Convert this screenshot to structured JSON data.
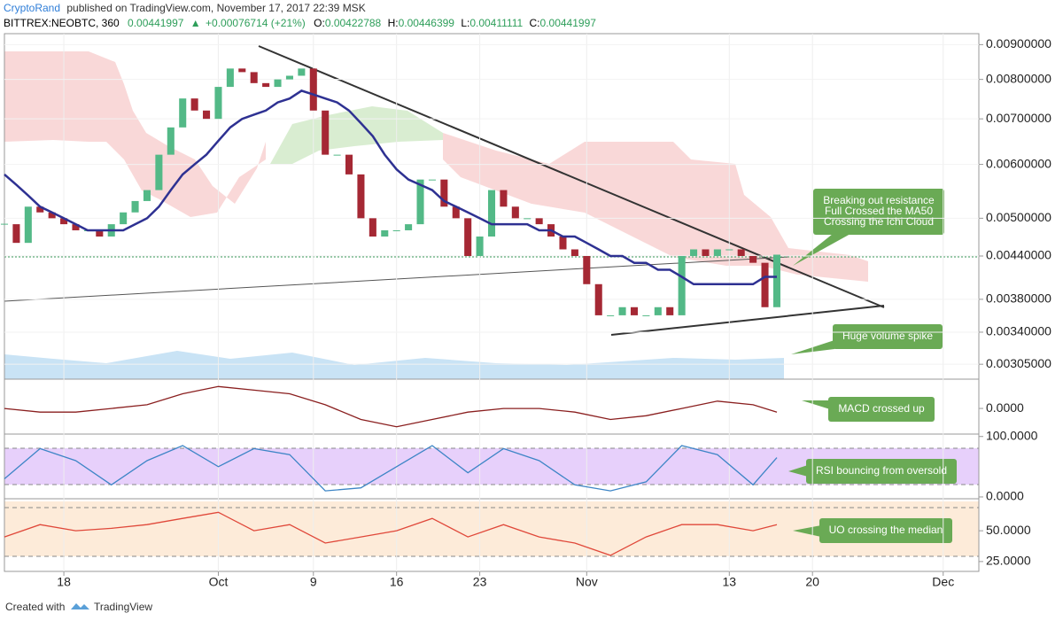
{
  "header": {
    "author": "CryptoRand",
    "published": "published on TradingView.com, November 17, 2017 22:39 MSK",
    "symbol": "BITTREX:NEOBTC, 360",
    "last": "0.00441997",
    "arrow": "▲",
    "change": "+0.00076714 (+21%)",
    "ohlc": [
      {
        "label": "O:",
        "value": "0.00422788"
      },
      {
        "label": "H:",
        "value": "0.00446399"
      },
      {
        "label": "L:",
        "value": "0.00411111"
      },
      {
        "label": "C:",
        "value": "0.00441997"
      }
    ]
  },
  "annotations": [
    {
      "lines": [
        "Breaking out resistance",
        "Full Crossed the MA50",
        "Crossing the Ichi Cloud"
      ]
    },
    {
      "lines": [
        "Huge volume spike"
      ]
    },
    {
      "lines": [
        "MACD crossed up"
      ]
    },
    {
      "lines": [
        "RSI bouncing from oversold"
      ]
    },
    {
      "lines": [
        "UO crossing the median"
      ]
    }
  ],
  "footer": {
    "created": "Created with",
    "brand": "TradingView"
  },
  "chart_data": [
    {
      "type": "candlestick",
      "log_scale": true,
      "grid": true,
      "up_color": "#53b987",
      "down_color": "#a52834",
      "xlim": [
        "2017-09-13",
        "2017-12-04"
      ],
      "xticks": [
        {
          "value": "2017-09-18",
          "label": "18"
        },
        {
          "value": "2017-10-01",
          "label": "Oct"
        },
        {
          "value": "2017-10-09",
          "label": "9"
        },
        {
          "value": "2017-10-16",
          "label": "16"
        },
        {
          "value": "2017-10-23",
          "label": "23"
        },
        {
          "value": "2017-11-01",
          "label": "Nov"
        },
        {
          "value": "2017-11-13",
          "label": "13"
        },
        {
          "value": "2017-11-20",
          "label": "20"
        },
        {
          "value": "2017-12-01",
          "label": "Dec"
        }
      ],
      "ylim": [
        0.0029,
        0.00934
      ],
      "yticks": [
        {
          "value": 0.009,
          "label": "0.00900000"
        },
        {
          "value": 0.008,
          "label": "0.00800000"
        },
        {
          "value": 0.007,
          "label": "0.00700000"
        },
        {
          "value": 0.006,
          "label": "0.00600000"
        },
        {
          "value": 0.005,
          "label": "0.00500000"
        },
        {
          "value": 0.0044,
          "label": "0.00440000"
        },
        {
          "value": 0.0038,
          "label": "0.00380000"
        },
        {
          "value": 0.0034,
          "label": "0.00340000"
        },
        {
          "value": 0.00305,
          "label": "0.00305000"
        }
      ],
      "x": [
        "2017-09-13",
        "2017-09-14",
        "2017-09-15",
        "2017-09-16",
        "2017-09-17",
        "2017-09-18",
        "2017-09-19",
        "2017-09-20",
        "2017-09-21",
        "2017-09-22",
        "2017-09-23",
        "2017-09-24",
        "2017-09-25",
        "2017-09-26",
        "2017-09-27",
        "2017-09-28",
        "2017-09-29",
        "2017-09-30",
        "2017-10-01",
        "2017-10-02",
        "2017-10-03",
        "2017-10-04",
        "2017-10-05",
        "2017-10-06",
        "2017-10-07",
        "2017-10-08",
        "2017-10-09",
        "2017-10-10",
        "2017-10-11",
        "2017-10-12",
        "2017-10-13",
        "2017-10-14",
        "2017-10-15",
        "2017-10-16",
        "2017-10-17",
        "2017-10-18",
        "2017-10-19",
        "2017-10-20",
        "2017-10-21",
        "2017-10-22",
        "2017-10-23",
        "2017-10-24",
        "2017-10-25",
        "2017-10-26",
        "2017-10-27",
        "2017-10-28",
        "2017-10-29",
        "2017-10-30",
        "2017-10-31",
        "2017-11-01",
        "2017-11-02",
        "2017-11-03",
        "2017-11-04",
        "2017-11-05",
        "2017-11-06",
        "2017-11-07",
        "2017-11-08",
        "2017-11-09",
        "2017-11-10",
        "2017-11-11",
        "2017-11-12",
        "2017-11-13",
        "2017-11-14",
        "2017-11-15",
        "2017-11-16",
        "2017-11-17"
      ],
      "series": [
        {
          "type": "candlestick",
          "values": [
            0.0049,
            0.0046,
            0.0052,
            0.0051,
            0.005,
            0.0049,
            0.0048,
            0.0048,
            0.0047,
            0.0049,
            0.0051,
            0.0053,
            0.0055,
            0.0062,
            0.0068,
            0.0075,
            0.0072,
            0.007,
            0.0078,
            0.0083,
            0.0082,
            0.0079,
            0.0078,
            0.008,
            0.0081,
            0.0083,
            0.0072,
            0.0062,
            0.0062,
            0.0058,
            0.005,
            0.0047,
            0.0048,
            0.0048,
            0.0049,
            0.0057,
            0.0057,
            0.0052,
            0.005,
            0.0044,
            0.0047,
            0.0055,
            0.0052,
            0.005,
            0.005,
            0.0049,
            0.0047,
            0.0045,
            0.0044,
            0.004,
            0.0036,
            0.0036,
            0.0037,
            0.0036,
            0.0036,
            0.0037,
            0.0036,
            0.0044,
            0.0045,
            0.0044,
            0.0045,
            0.0045,
            0.0044,
            0.0043,
            0.0037,
            0.00442
          ]
        },
        {
          "type": "line",
          "color": "#2e3192",
          "values": [
            0.0058,
            0.0056,
            0.0054,
            0.0052,
            0.0051,
            0.005,
            0.0049,
            0.0048,
            0.0048,
            0.0048,
            0.0048,
            0.0049,
            0.005,
            0.0052,
            0.0055,
            0.0058,
            0.006,
            0.0062,
            0.0065,
            0.0068,
            0.007,
            0.0071,
            0.0072,
            0.0074,
            0.0075,
            0.0077,
            0.0076,
            0.0075,
            0.0074,
            0.0072,
            0.0069,
            0.0066,
            0.0062,
            0.0059,
            0.0057,
            0.0056,
            0.0055,
            0.0053,
            0.0052,
            0.0051,
            0.005,
            0.0049,
            0.0049,
            0.0049,
            0.0049,
            0.0048,
            0.0048,
            0.0047,
            0.0047,
            0.0046,
            0.0045,
            0.0044,
            0.0044,
            0.0043,
            0.0043,
            0.0042,
            0.0042,
            0.0041,
            0.004,
            0.004,
            0.004,
            0.004,
            0.004,
            0.004,
            0.0041,
            0.0041
          ]
        }
      ]
    },
    {
      "type": "line",
      "grid": false,
      "ylim": [
        -0.0007,
        0.0008
      ],
      "yticks": [
        {
          "value": 0,
          "label": "0.0000"
        }
      ],
      "x": [
        "2017-09-13",
        "2017-09-16",
        "2017-09-19",
        "2017-09-22",
        "2017-09-25",
        "2017-09-28",
        "2017-10-01",
        "2017-10-04",
        "2017-10-07",
        "2017-10-10",
        "2017-10-13",
        "2017-10-16",
        "2017-10-19",
        "2017-10-22",
        "2017-10-25",
        "2017-10-28",
        "2017-10-31",
        "2017-11-03",
        "2017-11-06",
        "2017-11-09",
        "2017-11-12",
        "2017-11-15",
        "2017-11-17"
      ],
      "series": [
        {
          "type": "line",
          "color": "#8a1f1f",
          "values": [
            0.0,
            -0.0001,
            -0.0001,
            0.0,
            0.0001,
            0.0004,
            0.0006,
            0.0005,
            0.0004,
            0.0001,
            -0.0003,
            -0.0005,
            -0.0003,
            -0.0001,
            0.0,
            0.0,
            -0.0001,
            -0.0003,
            -0.0002,
            0.0,
            0.0002,
            0.0001,
            -0.0001
          ]
        }
      ]
    },
    {
      "type": "line",
      "grid": false,
      "ylim": [
        -3,
        104
      ],
      "yticks": [
        {
          "value": 100,
          "label": "100.0000"
        },
        {
          "value": 0,
          "label": "0.0000"
        }
      ],
      "x": [
        "2017-09-13",
        "2017-09-16",
        "2017-09-19",
        "2017-09-22",
        "2017-09-25",
        "2017-09-28",
        "2017-10-01",
        "2017-10-04",
        "2017-10-07",
        "2017-10-10",
        "2017-10-13",
        "2017-10-16",
        "2017-10-19",
        "2017-10-22",
        "2017-10-25",
        "2017-10-28",
        "2017-10-31",
        "2017-11-03",
        "2017-11-06",
        "2017-11-09",
        "2017-11-12",
        "2017-11-15",
        "2017-11-17"
      ],
      "series": [
        {
          "type": "line",
          "color": "#3d85c6",
          "values": [
            30,
            80,
            60,
            20,
            60,
            85,
            50,
            80,
            70,
            10,
            15,
            50,
            85,
            40,
            80,
            60,
            20,
            10,
            25,
            85,
            70,
            20,
            65
          ]
        }
      ]
    },
    {
      "type": "line",
      "grid": false,
      "ylim": [
        17,
        76
      ],
      "yticks": [
        {
          "value": 50,
          "label": "50.0000"
        },
        {
          "value": 25,
          "label": "25.0000"
        }
      ],
      "x": [
        "2017-09-13",
        "2017-09-16",
        "2017-09-19",
        "2017-09-22",
        "2017-09-25",
        "2017-09-28",
        "2017-10-01",
        "2017-10-04",
        "2017-10-07",
        "2017-10-10",
        "2017-10-13",
        "2017-10-16",
        "2017-10-19",
        "2017-10-22",
        "2017-10-25",
        "2017-10-28",
        "2017-10-31",
        "2017-11-03",
        "2017-11-06",
        "2017-11-09",
        "2017-11-12",
        "2017-11-15",
        "2017-11-17"
      ],
      "series": [
        {
          "type": "line",
          "color": "#e0483a",
          "values": [
            45,
            55,
            50,
            52,
            55,
            60,
            65,
            50,
            55,
            40,
            45,
            50,
            60,
            45,
            55,
            45,
            40,
            30,
            45,
            55,
            55,
            50,
            55
          ]
        }
      ]
    }
  ]
}
